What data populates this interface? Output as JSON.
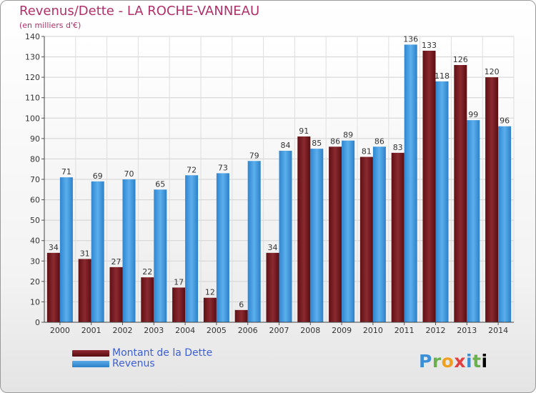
{
  "chart_data": {
    "type": "bar",
    "title": "Revenus/Dette - LA ROCHE-VANNEAU",
    "subtitle": "(en milliers d'€)",
    "categories": [
      "2000",
      "2001",
      "2002",
      "2003",
      "2004",
      "2005",
      "2006",
      "2007",
      "2008",
      "2009",
      "2010",
      "2011",
      "2012",
      "2013",
      "2014"
    ],
    "series": [
      {
        "name": "Montant de la Dette",
        "color": "#7a1a1f",
        "values": [
          34,
          31,
          27,
          22,
          17,
          12,
          6,
          34,
          91,
          86,
          81,
          83,
          133,
          126,
          120
        ]
      },
      {
        "name": "Revenus",
        "color": "#3e95dc",
        "values": [
          71,
          69,
          70,
          65,
          72,
          73,
          79,
          84,
          85,
          89,
          86,
          136,
          118,
          99,
          96
        ]
      }
    ],
    "yticks": [
      0,
      10,
      20,
      30,
      40,
      50,
      60,
      70,
      80,
      90,
      100,
      110,
      120,
      130,
      140
    ],
    "ylim": [
      0,
      140
    ],
    "grid": true,
    "legend": "bottom-left"
  },
  "logo": {
    "text": "Proxiti"
  }
}
